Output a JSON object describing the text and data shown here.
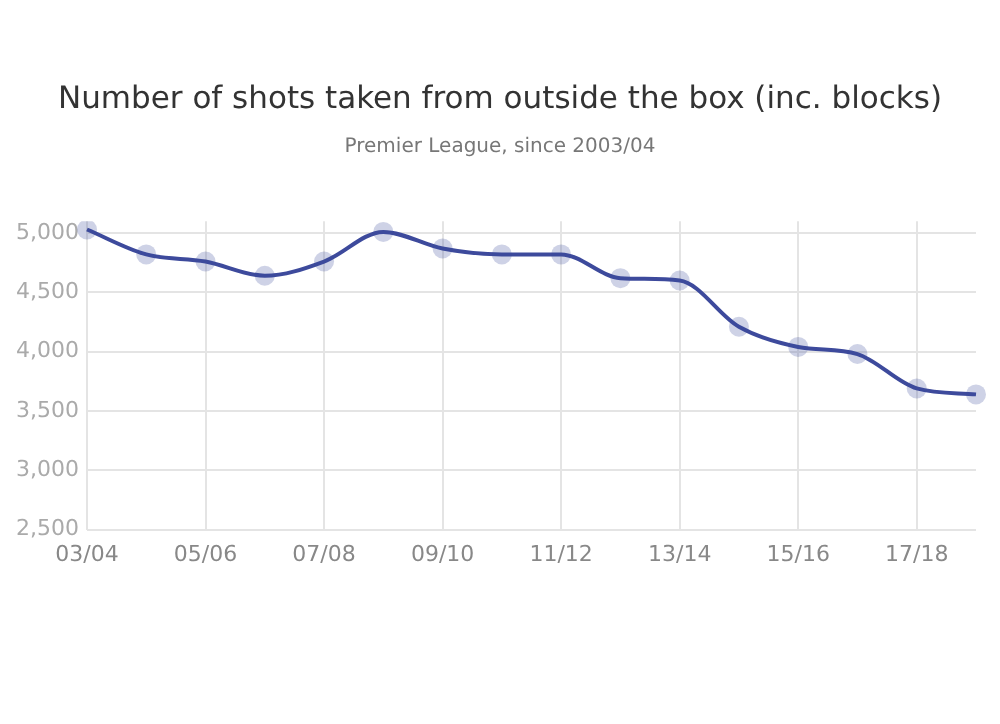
{
  "chart_data": {
    "type": "line",
    "title": "Number of shots taken from outside the box (inc. blocks)",
    "subtitle": "Premier League, since 2003/04",
    "categories": [
      "03/04",
      null,
      "05/06",
      null,
      "07/08",
      null,
      "09/10",
      null,
      "11/12",
      null,
      "13/14",
      null,
      "15/16",
      null,
      "17/18",
      null
    ],
    "series": [
      {
        "color": "#3d4a9c",
        "values": [
          5030,
          4820,
          4760,
          4640,
          4760,
          5010,
          4870,
          4820,
          4820,
          4620,
          4600,
          4210,
          4040,
          3980,
          3690,
          3640
        ]
      }
    ],
    "ylim": [
      2500,
      5100
    ],
    "yticks": [
      {
        "value": 2500,
        "label": "2,500"
      },
      {
        "value": 3000,
        "label": "3,000"
      },
      {
        "value": 3500,
        "label": "3,500"
      },
      {
        "value": 4000,
        "label": "4,000"
      },
      {
        "value": 4500,
        "label": "4,500"
      },
      {
        "value": 5000,
        "label": "5,000"
      }
    ],
    "grid": true,
    "legend": false,
    "marker": "circle",
    "line_style": "solid"
  }
}
